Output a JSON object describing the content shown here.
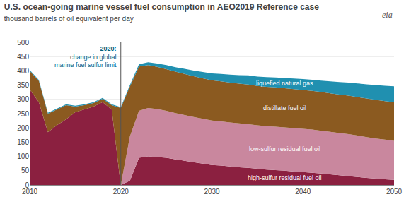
{
  "chart_data": {
    "type": "area",
    "stacked": true,
    "title": "U.S. ocean-going marine vessel fuel consumption in AEO2019 Reference case",
    "subtitle": "thousand barrels of oil equivalent per day",
    "annotations": [
      {
        "text": "2020:",
        "x": 2020
      },
      {
        "text": "change in global\nmarine fuel sulfur limit",
        "x": 2020
      },
      {
        "text": "eia"
      }
    ],
    "x": [
      2010,
      2011,
      2012,
      2013,
      2014,
      2015,
      2016,
      2017,
      2018,
      2019,
      2019.99,
      2020,
      2021,
      2022,
      2023,
      2024,
      2025,
      2026,
      2027,
      2028,
      2029,
      2030,
      2031,
      2032,
      2033,
      2034,
      2035,
      2036,
      2037,
      2038,
      2039,
      2040,
      2041,
      2042,
      2043,
      2044,
      2045,
      2046,
      2047,
      2048,
      2049,
      2050
    ],
    "series": [
      {
        "name": "high-sulfur residual fuel oil",
        "color": "#8B2040",
        "values": [
          335,
          290,
          185,
          210,
          230,
          255,
          265,
          275,
          290,
          265,
          0,
          0,
          15,
          95,
          100,
          98,
          95,
          90,
          85,
          80,
          75,
          70,
          68,
          65,
          62,
          60,
          57,
          54,
          52,
          50,
          47,
          45,
          43,
          40,
          37,
          34,
          31,
          28,
          25,
          22,
          20,
          18
        ]
      },
      {
        "name": "low-sulfur residual fuel oil",
        "color": "#C9879E",
        "values": [
          0,
          0,
          0,
          0,
          0,
          0,
          0,
          0,
          0,
          0,
          0,
          0,
          155,
          165,
          170,
          168,
          165,
          162,
          160,
          158,
          157,
          156,
          155,
          154,
          154,
          153,
          152,
          152,
          152,
          152,
          152,
          152,
          151,
          150,
          149,
          148,
          147,
          145,
          143,
          141,
          139,
          137
        ]
      },
      {
        "name": "distillate fuel oil",
        "color": "#8B5A20",
        "values": [
          65,
          75,
          65,
          55,
          50,
          20,
          15,
          12,
          12,
          15,
          270,
          270,
          175,
          155,
          150,
          148,
          146,
          145,
          144,
          143,
          142,
          141,
          140,
          140,
          139,
          139,
          138,
          138,
          138,
          137,
          137,
          136,
          136,
          136,
          135,
          135,
          135,
          135,
          135,
          135,
          135,
          135
        ]
      },
      {
        "name": "liquefied natural gas",
        "color": "#2090B0",
        "values": [
          3,
          3,
          3,
          3,
          3,
          3,
          3,
          3,
          3,
          3,
          3,
          3,
          5,
          8,
          10,
          12,
          14,
          16,
          18,
          20,
          22,
          24,
          26,
          28,
          30,
          32,
          33,
          34,
          35,
          36,
          37,
          38,
          39,
          40,
          42,
          44,
          46,
          48,
          50,
          52,
          54,
          56
        ]
      }
    ],
    "xlim": [
      2010,
      2050
    ],
    "ylim": [
      0,
      500
    ],
    "xticks": [
      2010,
      2020,
      2030,
      2040,
      2050
    ],
    "yticks": [
      0,
      50,
      100,
      150,
      200,
      250,
      300,
      350,
      400,
      450,
      500
    ],
    "grid": true
  }
}
